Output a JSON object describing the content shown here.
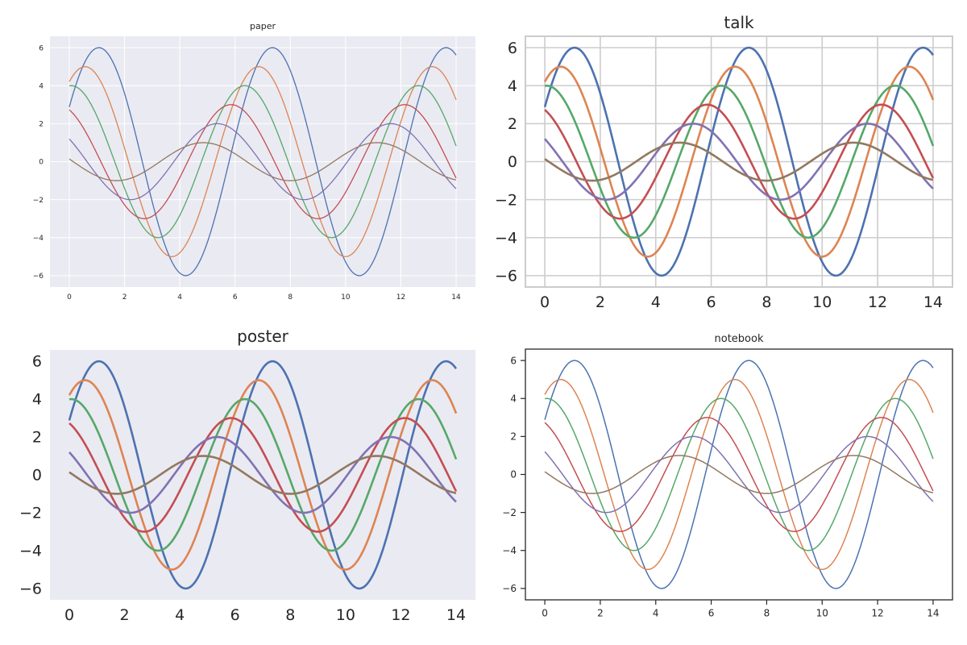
{
  "figure": {
    "layout": "2x2 grid"
  },
  "chart_data": [
    {
      "type": "line",
      "title": "paper",
      "style": "darkgrid",
      "x_range": [
        0,
        14
      ],
      "xlim": [
        -0.7,
        14.7
      ],
      "ylim": [
        -6.6,
        6.6
      ],
      "xticks": [
        0,
        2,
        4,
        6,
        8,
        10,
        12,
        14
      ],
      "yticks": [
        -6,
        -4,
        -2,
        0,
        2,
        4,
        6
      ],
      "grid": true,
      "series": [
        {
          "amplitude": 6,
          "color": "#4c72b0",
          "phase_offset": 0.5
        },
        {
          "amplitude": 5,
          "color": "#dd8452",
          "phase_offset": 1.0
        },
        {
          "amplitude": 4,
          "color": "#55a868",
          "phase_offset": 1.5
        },
        {
          "amplitude": 3,
          "color": "#c44e52",
          "phase_offset": 2.0
        },
        {
          "amplitude": 2,
          "color": "#8172b3",
          "phase_offset": 2.5
        },
        {
          "amplitude": 1,
          "color": "#937860",
          "phase_offset": 3.0
        }
      ]
    },
    {
      "type": "line",
      "title": "talk",
      "style": "whitegrid",
      "x_range": [
        0,
        14
      ],
      "xlim": [
        -0.7,
        14.7
      ],
      "ylim": [
        -6.6,
        6.6
      ],
      "xticks": [
        0,
        2,
        4,
        6,
        8,
        10,
        12,
        14
      ],
      "yticks": [
        -6,
        -4,
        -2,
        0,
        2,
        4,
        6
      ],
      "grid": true,
      "series": [
        {
          "amplitude": 6,
          "color": "#4c72b0",
          "phase_offset": 0.5
        },
        {
          "amplitude": 5,
          "color": "#dd8452",
          "phase_offset": 1.0
        },
        {
          "amplitude": 4,
          "color": "#55a868",
          "phase_offset": 1.5
        },
        {
          "amplitude": 3,
          "color": "#c44e52",
          "phase_offset": 2.0
        },
        {
          "amplitude": 2,
          "color": "#8172b3",
          "phase_offset": 2.5
        },
        {
          "amplitude": 1,
          "color": "#937860",
          "phase_offset": 3.0
        }
      ]
    },
    {
      "type": "line",
      "title": "poster",
      "style": "dark",
      "x_range": [
        0,
        14
      ],
      "xlim": [
        -0.7,
        14.7
      ],
      "ylim": [
        -6.6,
        6.6
      ],
      "xticks": [
        0,
        2,
        4,
        6,
        8,
        10,
        12,
        14
      ],
      "yticks": [
        -6,
        -4,
        -2,
        0,
        2,
        4,
        6
      ],
      "grid": false,
      "series": [
        {
          "amplitude": 6,
          "color": "#4c72b0",
          "phase_offset": 0.5
        },
        {
          "amplitude": 5,
          "color": "#dd8452",
          "phase_offset": 1.0
        },
        {
          "amplitude": 4,
          "color": "#55a868",
          "phase_offset": 1.5
        },
        {
          "amplitude": 3,
          "color": "#c44e52",
          "phase_offset": 2.0
        },
        {
          "amplitude": 2,
          "color": "#8172b3",
          "phase_offset": 2.5
        },
        {
          "amplitude": 1,
          "color": "#937860",
          "phase_offset": 3.0
        }
      ]
    },
    {
      "type": "line",
      "title": "notebook",
      "style": "ticks",
      "x_range": [
        0,
        14
      ],
      "xlim": [
        -0.7,
        14.7
      ],
      "ylim": [
        -6.6,
        6.6
      ],
      "xticks": [
        0,
        2,
        4,
        6,
        8,
        10,
        12,
        14
      ],
      "yticks": [
        -6,
        -4,
        -2,
        0,
        2,
        4,
        6
      ],
      "grid": false,
      "series": [
        {
          "amplitude": 6,
          "color": "#4c72b0",
          "phase_offset": 0.5
        },
        {
          "amplitude": 5,
          "color": "#dd8452",
          "phase_offset": 1.0
        },
        {
          "amplitude": 4,
          "color": "#55a868",
          "phase_offset": 1.5
        },
        {
          "amplitude": 3,
          "color": "#c44e52",
          "phase_offset": 2.0
        },
        {
          "amplitude": 2,
          "color": "#8172b3",
          "phase_offset": 2.5
        },
        {
          "amplitude": 1,
          "color": "#937860",
          "phase_offset": 3.0
        }
      ]
    }
  ]
}
